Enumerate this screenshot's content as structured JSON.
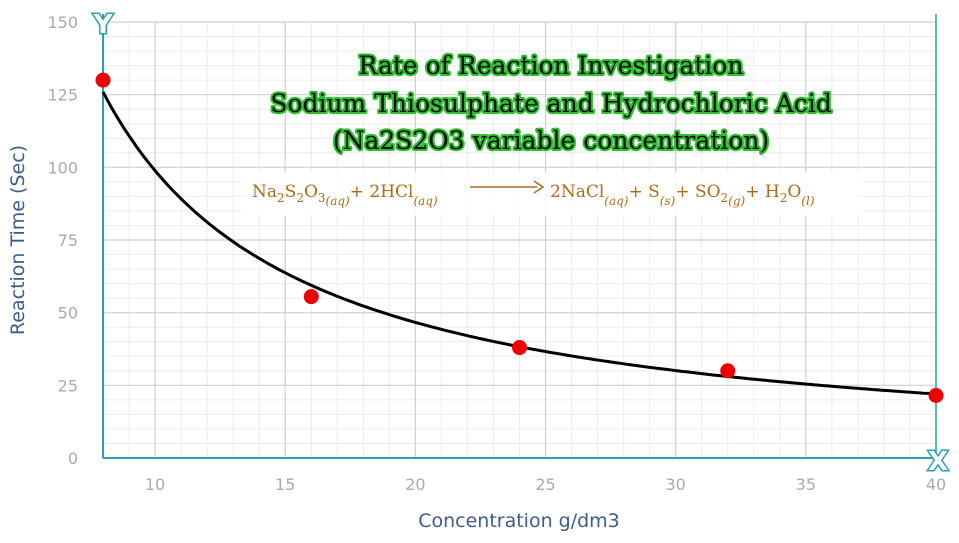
{
  "chart_data": {
    "type": "scatter",
    "title": [
      "Rate of Reaction Investigation",
      "Sodium Thiosulphate and Hydrochloric Acid",
      "(Na2S2O3 variable concentration)"
    ],
    "xlabel": "Concentration g/dm3",
    "ylabel": "Reaction Time (Sec)",
    "xlim": [
      8,
      40
    ],
    "ylim": [
      0,
      150
    ],
    "xticks": [
      10,
      15,
      20,
      25,
      30,
      35,
      40
    ],
    "yticks": [
      0,
      25,
      50,
      75,
      100,
      125,
      150
    ],
    "grid": true,
    "axis_icons": {
      "y": "Y",
      "x": "X"
    },
    "series": [
      {
        "x": [
          8,
          16,
          24,
          32,
          40
        ],
        "y": [
          130,
          55.5,
          38,
          30,
          21.5
        ],
        "marker_color": "#ee0000",
        "trendline": "power",
        "trendline_color": "#000000"
      }
    ],
    "equation": {
      "lhs": [
        {
          "main": "Na",
          "sub": "2"
        },
        {
          "main": "S",
          "sub": "2"
        },
        {
          "main": "O",
          "sub": "3",
          "state": "(aq)"
        },
        {
          "main": "+ 2HCl",
          "state": "(aq)"
        }
      ],
      "rhs": [
        {
          "main": "2NaCl",
          "state": "(aq)"
        },
        {
          "main": "+ S",
          "state": "(s)"
        },
        {
          "main": "+ SO",
          "sub": "2",
          "state": "(g)"
        },
        {
          "main": "+ H",
          "sub": "2"
        },
        {
          "main": "O",
          "state": "(l)"
        }
      ],
      "color": "#b06a18"
    }
  }
}
